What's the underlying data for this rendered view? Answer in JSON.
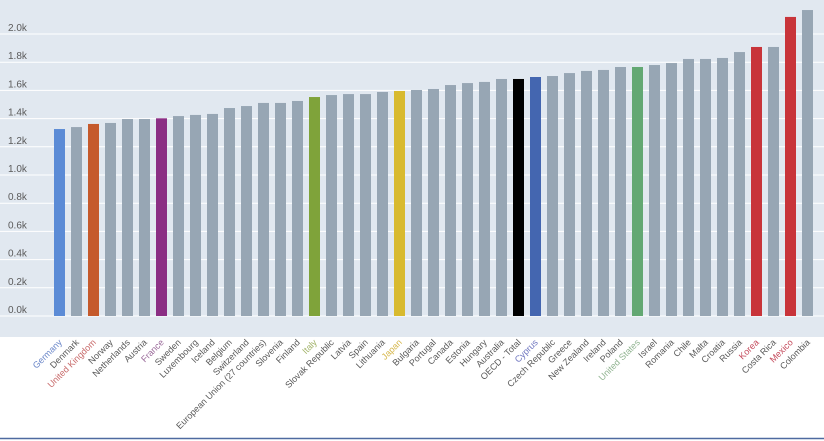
{
  "chart_data": {
    "type": "bar",
    "ylim": [
      0,
      2.0
    ],
    "yticks": [
      "0.0k",
      "0.2k",
      "0.4k",
      "0.6k",
      "0.8k",
      "1.0k",
      "1.2k",
      "1.4k",
      "1.6k",
      "1.8k",
      "2.0k"
    ],
    "grid": true,
    "categories": [
      "Germany",
      "Denmark",
      "United Kingdom",
      "Norway",
      "Netherlands",
      "Austria",
      "France",
      "Sweden",
      "Luxembourg",
      "Iceland",
      "Belgium",
      "Switzerland",
      "European Union (27 countries)",
      "Slovenia",
      "Finland",
      "Italy",
      "Slovak Republic",
      "Latvia",
      "Spain",
      "Lithuania",
      "Japan",
      "Bulgaria",
      "Portugal",
      "Canada",
      "Estonia",
      "Hungary",
      "Australia",
      "OECD - Total",
      "Cyprus",
      "Czech Republic",
      "Greece",
      "New Zealand",
      "Ireland",
      "Poland",
      "United States",
      "Israel",
      "Romania",
      "Chile",
      "Malta",
      "Croatia",
      "Russia",
      "Korea",
      "Costa Rica",
      "Mexico",
      "Colombia"
    ],
    "values": [
      1326,
      1340,
      1362,
      1369,
      1397,
      1397,
      1402,
      1418,
      1426,
      1433,
      1475,
      1489,
      1511,
      1511,
      1525,
      1553,
      1567,
      1574,
      1574,
      1589,
      1596,
      1603,
      1610,
      1638,
      1652,
      1660,
      1681,
      1681,
      1695,
      1702,
      1723,
      1738,
      1745,
      1766,
      1766,
      1780,
      1794,
      1823,
      1823,
      1830,
      1872,
      1908,
      1908,
      2121,
      2170
    ],
    "default_color": "#97a6b4",
    "highlight_colors": {
      "Germany": "#5b8bd6",
      "United Kingdom": "#c55a2c",
      "France": "#8b2e84",
      "Italy": "#7fa33a",
      "Japan": "#d8ba2f",
      "OECD - Total": "#000000",
      "Cyprus": "#4466b0",
      "United States": "#63a873",
      "Korea": "#c8343a",
      "Mexico": "#c8343a"
    },
    "label_colors": {
      "Germany": "#6a86c8",
      "United Kingdom": "#c86a6a",
      "France": "#9a6a9a",
      "Italy": "#a2b36a",
      "Japan": "#d6b64a",
      "Cyprus": "#6f76c0",
      "United States": "#8fb38f",
      "Korea": "#c4485a",
      "Mexico": "#c4485a"
    },
    "default_label_color": "#595959",
    "plot_background": "#e1e8f0"
  }
}
